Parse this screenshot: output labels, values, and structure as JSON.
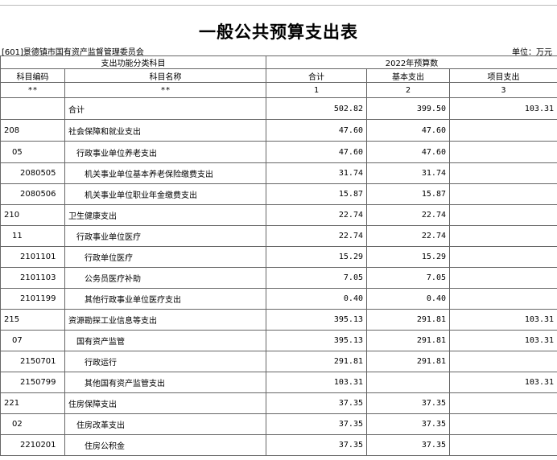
{
  "header": {
    "title": "一般公共预算支出表",
    "organization": "[601]景德镇市国有资产监督管理委员会",
    "unit": "单位：万元"
  },
  "table": {
    "group_headers": [
      "支出功能分类科目",
      "2022年预算数"
    ],
    "columns": [
      "科目编码",
      "科目名称",
      "合计",
      "基本支出",
      "项目支出"
    ],
    "index_row": [
      "**",
      "**",
      "1",
      "2",
      "3"
    ],
    "rows": [
      [
        null,
        "合计",
        "502.82",
        "399.50",
        "103.31"
      ],
      [
        "208",
        "社会保障和就业支出",
        "47.60",
        "47.60",
        null
      ],
      [
        "05",
        "行政事业单位养老支出",
        "47.60",
        "47.60",
        null
      ],
      [
        "2080505",
        "机关事业单位基本养老保险缴费支出",
        "31.74",
        "31.74",
        null
      ],
      [
        "2080506",
        "机关事业单位职业年金缴费支出",
        "15.87",
        "15.87",
        null
      ],
      [
        "210",
        "卫生健康支出",
        "22.74",
        "22.74",
        null
      ],
      [
        "11",
        "行政事业单位医疗",
        "22.74",
        "22.74",
        null
      ],
      [
        "2101101",
        "行政单位医疗",
        "15.29",
        "15.29",
        null
      ],
      [
        "2101103",
        "公务员医疗补助",
        "7.05",
        "7.05",
        null
      ],
      [
        "2101199",
        "其他行政事业单位医疗支出",
        "0.40",
        "0.40",
        null
      ],
      [
        "215",
        "资源勘探工业信息等支出",
        "395.13",
        "291.81",
        "103.31"
      ],
      [
        "07",
        "国有资产监管",
        "395.13",
        "291.81",
        "103.31"
      ],
      [
        "2150701",
        "行政运行",
        "291.81",
        "291.81",
        null
      ],
      [
        "2150799",
        "其他国有资产监管支出",
        "103.31",
        null,
        "103.31"
      ],
      [
        "221",
        "住房保障支出",
        "37.35",
        "37.35",
        null
      ],
      [
        "02",
        "住房改革支出",
        "37.35",
        "37.35",
        null
      ],
      [
        "2210201",
        "住房公积金",
        "37.35",
        "37.35",
        null
      ]
    ]
  }
}
